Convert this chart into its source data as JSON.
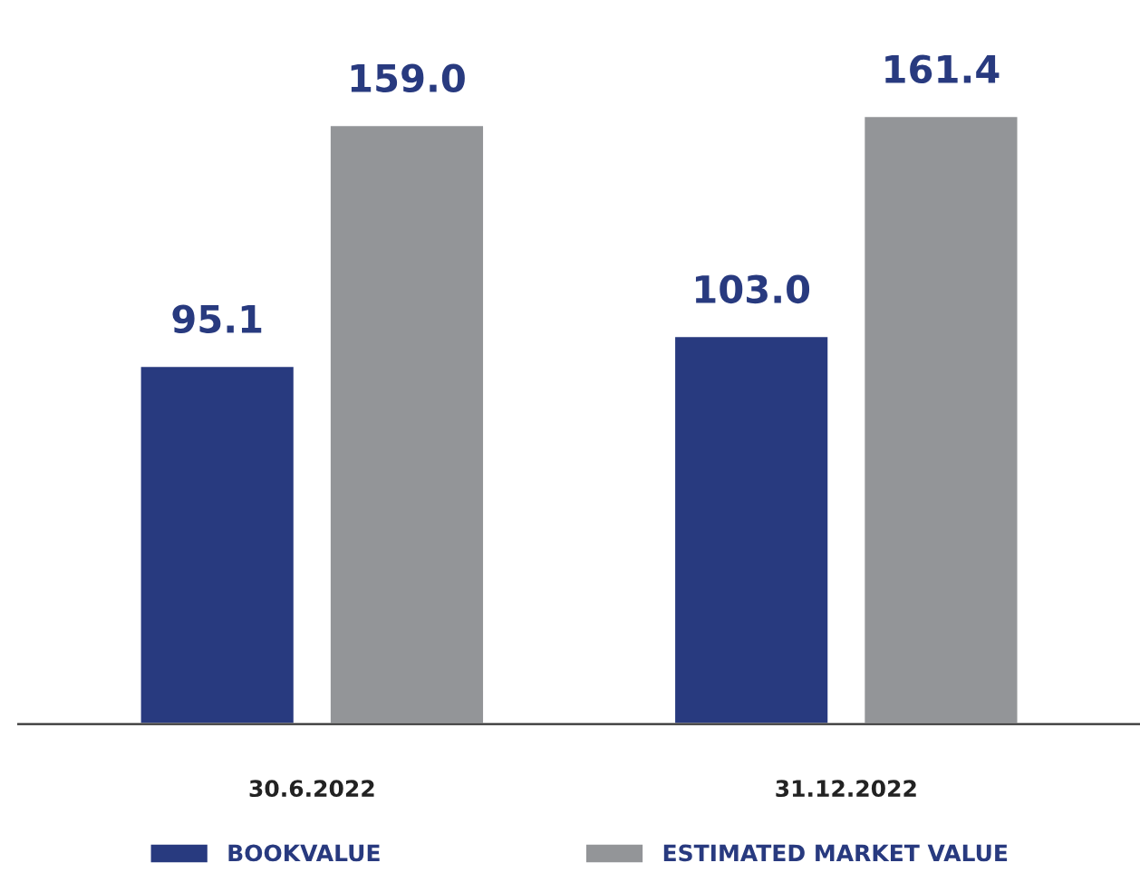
{
  "chart_data": {
    "type": "bar",
    "categories": [
      "30.6.2022",
      "31.12.2022"
    ],
    "series": [
      {
        "name": "BOOKVALUE",
        "color": "#283a7f",
        "values": [
          95.1,
          103.0
        ],
        "value_labels": [
          "95.1",
          "103.0"
        ]
      },
      {
        "name": "ESTIMATED MARKET VALUE",
        "color": "#939598",
        "values": [
          159.0,
          161.4
        ],
        "value_labels": [
          "159.0",
          "161.4"
        ]
      }
    ],
    "legend": "bottom",
    "grid": false
  }
}
